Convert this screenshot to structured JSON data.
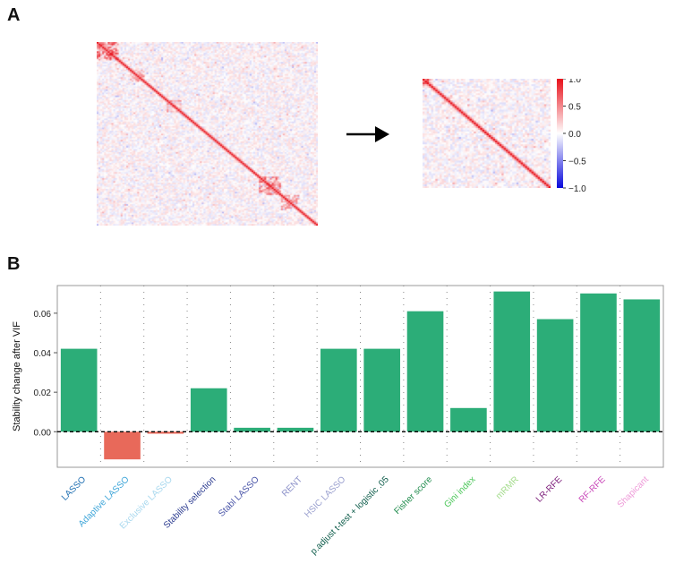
{
  "panels": {
    "a_label": "A",
    "b_label": "B"
  },
  "colorbar": {
    "ticks": [
      "1.0",
      "0.5",
      "0.0",
      "−0.5",
      "−1.0"
    ],
    "tick_values": [
      1.0,
      0.5,
      0.0,
      -0.5,
      -1.0
    ],
    "min": -1.0,
    "max": 1.0,
    "colors": {
      "low": "#0a0adc",
      "mid": "#ffffff",
      "high": "#e8101a"
    }
  },
  "heatmaps": {
    "before": {
      "name": "correlation-heatmap-before-vif",
      "size": 120
    },
    "after": {
      "name": "correlation-heatmap-after-vif",
      "size": 60
    }
  },
  "chart_data": {
    "type": "bar",
    "title": "",
    "xlabel": "",
    "ylabel": "Stability change after VIF",
    "ylim": [
      -0.018,
      0.074
    ],
    "yticks": [
      0.0,
      0.02,
      0.04,
      0.06
    ],
    "ytick_labels": [
      "0.00",
      "0.02",
      "0.04",
      "0.06"
    ],
    "categories": [
      "LASSO",
      "Adaptive LASSO",
      "Exclusive LASSO",
      "Stability selection",
      "Stabl LASSO",
      "RENT",
      "HSIC LASSO",
      "p.adjust t-test + logistic .05",
      "Fisher score",
      "Gini index",
      "mRMR",
      "LR-RFE",
      "RF-RFE",
      "Shapicant"
    ],
    "values": [
      0.042,
      -0.014,
      -0.001,
      0.022,
      0.002,
      0.002,
      0.042,
      0.042,
      0.061,
      0.012,
      0.071,
      0.057,
      0.07,
      0.067
    ],
    "label_colors": [
      "#1f6fb2",
      "#3fa6d9",
      "#a8d8ee",
      "#2a3a8f",
      "#4a55a8",
      "#8a8fc8",
      "#9aa0cf",
      "#0d5c4a",
      "#1c8a4a",
      "#4cc75a",
      "#a4dc8c",
      "#7a1a78",
      "#c845b8",
      "#ee9ad8"
    ],
    "colors": {
      "positive": "#2cad78",
      "negative": "#e8695a"
    }
  }
}
